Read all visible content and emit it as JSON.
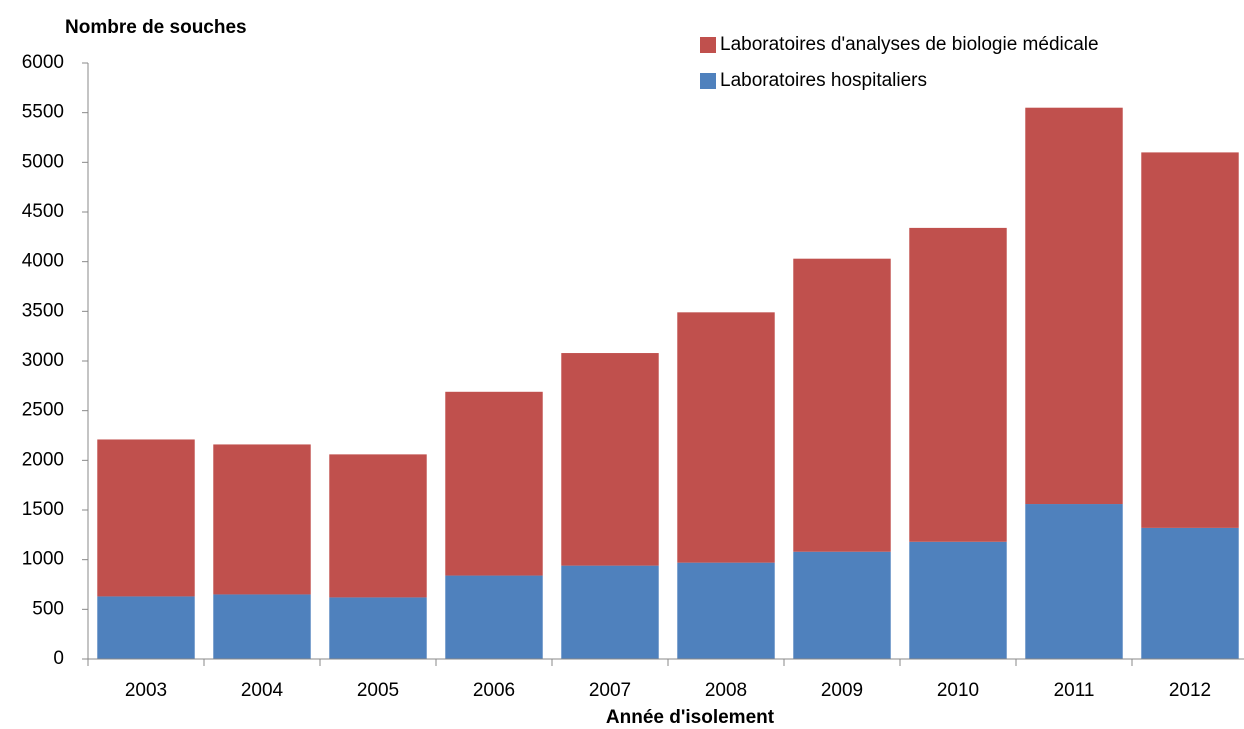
{
  "chart_data": {
    "type": "stacked-bar",
    "y_axis_title": "Nombre de souches",
    "x_axis_title": "Année  d'isolement",
    "categories": [
      "2003",
      "2004",
      "2005",
      "2006",
      "2007",
      "2008",
      "2009",
      "2010",
      "2011",
      "2012"
    ],
    "series": [
      {
        "name": "Laboratoires hospitaliers",
        "color": "#4f81bd",
        "values": [
          630,
          650,
          620,
          840,
          940,
          970,
          1080,
          1180,
          1560,
          1320
        ]
      },
      {
        "name": "Laboratoires d'analyses de biologie médicale",
        "color": "#c0504d",
        "values": [
          1580,
          1510,
          1440,
          1850,
          2140,
          2520,
          2950,
          3160,
          3990,
          3780
        ]
      }
    ],
    "ylim": [
      0,
      6000
    ],
    "yticks": [
      0,
      500,
      1000,
      1500,
      2000,
      2500,
      3000,
      3500,
      4000,
      4500,
      5000,
      5500,
      6000
    ],
    "grid": false
  }
}
